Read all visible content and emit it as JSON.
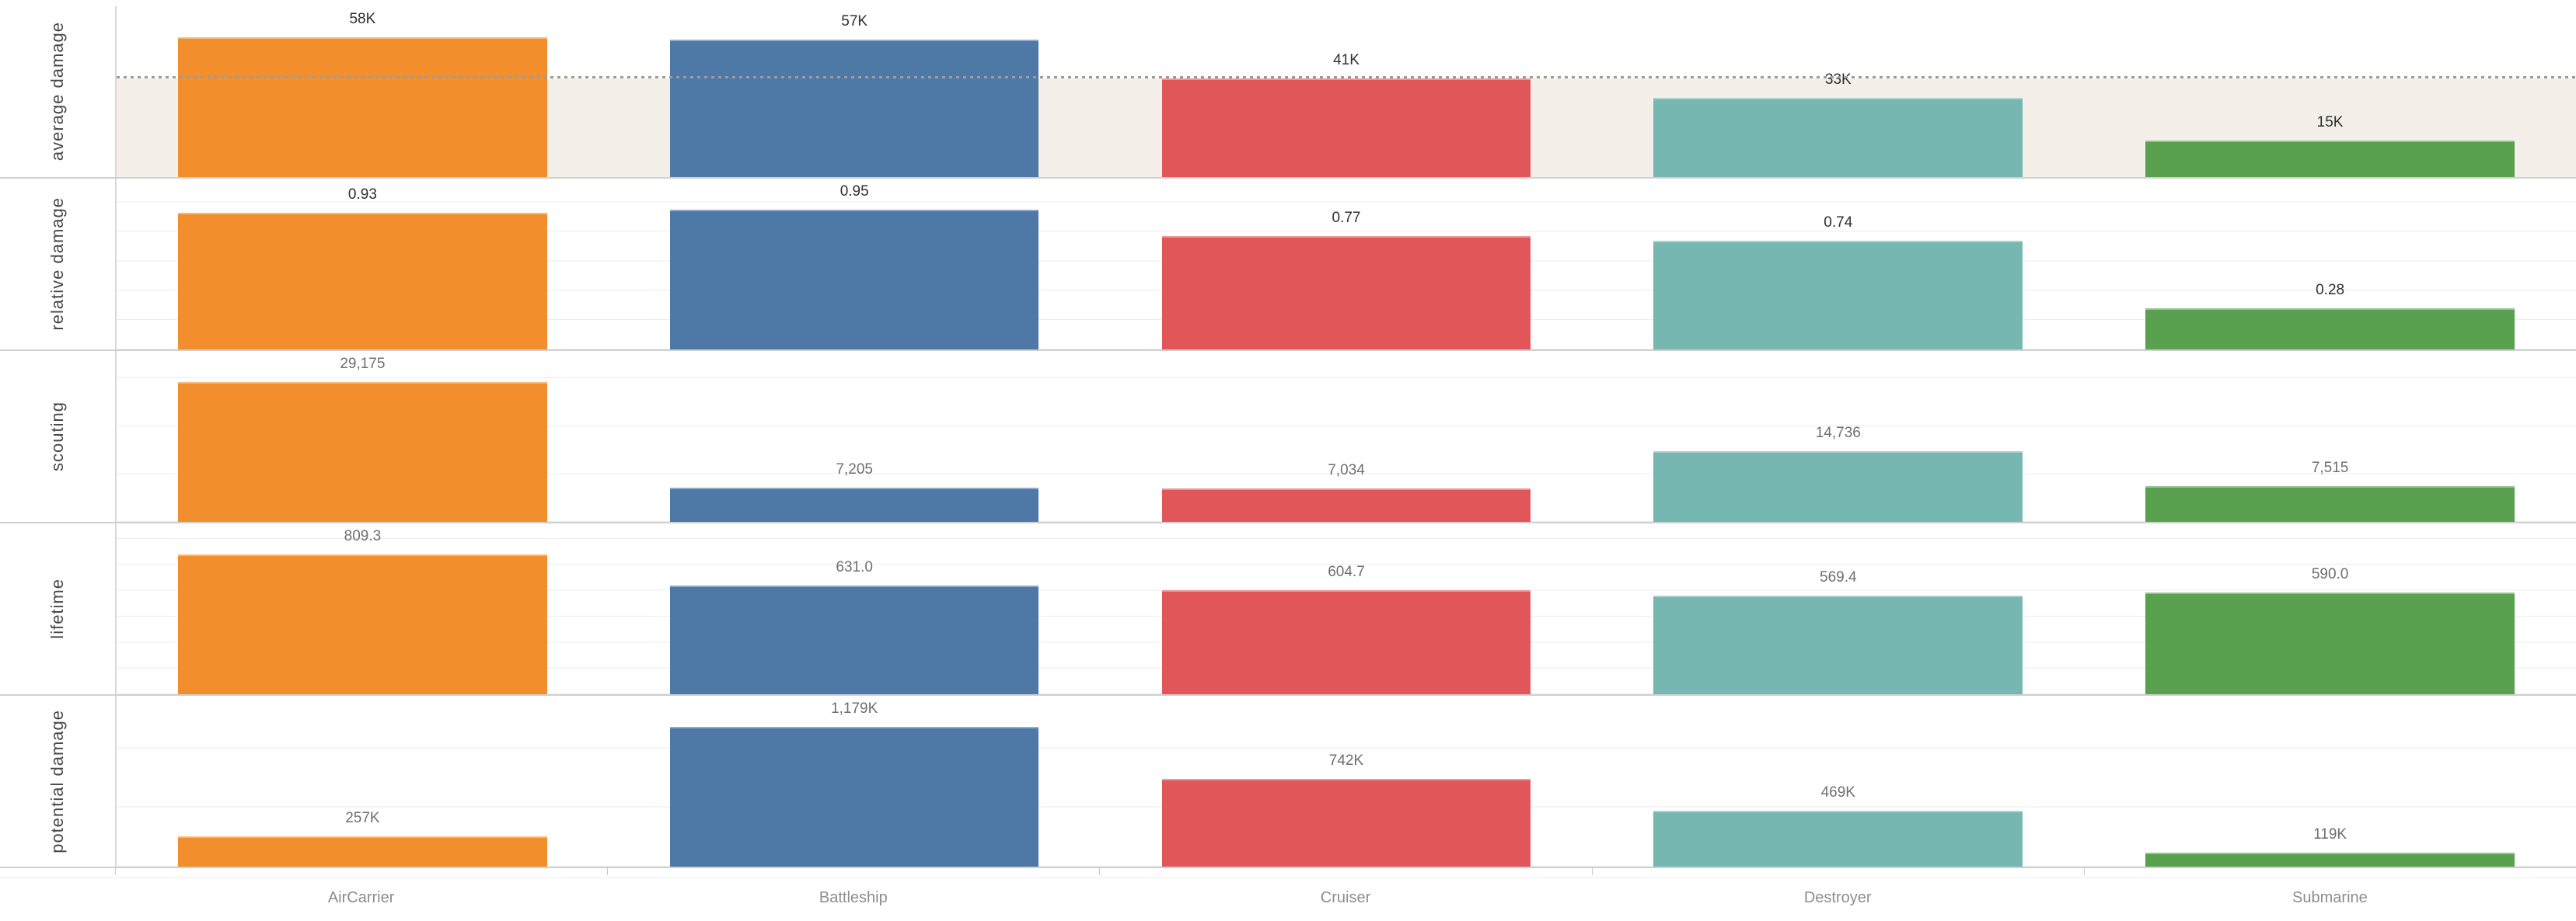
{
  "chart_data": {
    "type": "bar",
    "layout": "small-multiples-rows",
    "title": "",
    "legend": "none",
    "categories": [
      "AirCarrier",
      "Battleship",
      "Cruiser",
      "Destroyer",
      "Submarine"
    ],
    "category_colors": [
      "#f28e2b",
      "#4e79a7",
      "#e15759",
      "#76b7b2",
      "#59a14f"
    ],
    "axis_colors": {
      "separator": "#d0d0d0",
      "axis_line": "#d9d9d9",
      "gridline": "#ececec",
      "reference_dots": "#9c9c9c",
      "category_label": "#8d8d8d",
      "row_label": "#4a4747"
    },
    "rows": [
      {
        "metric": "average damage",
        "values": [
          58000,
          57000,
          41000,
          33000,
          15000
        ],
        "labels": [
          "58K",
          "57K",
          "41K",
          "33K",
          "15K"
        ],
        "label_color": "#2f2f2f",
        "ylim": [
          0,
          58000
        ],
        "grid_step": null,
        "reference_line": 41000,
        "reference_band": {
          "from": 0,
          "to": 41000,
          "fill": "#f4efe8"
        }
      },
      {
        "metric": "relative damage",
        "values": [
          0.93,
          0.95,
          0.77,
          0.74,
          0.28
        ],
        "labels": [
          "0.93",
          "0.95",
          "0.77",
          "0.74",
          "0.28"
        ],
        "label_color": "#2f2f2f",
        "ylim": [
          0,
          0.95
        ],
        "grid_step": 0.2,
        "reference_line": null,
        "reference_band": null
      },
      {
        "metric": "scouting",
        "values": [
          29175,
          7205,
          7034,
          14736,
          7515
        ],
        "labels": [
          "29,175",
          "7,205",
          "7,034",
          "14,736",
          "7,515"
        ],
        "label_color": "#6f6f6f",
        "ylim": [
          0,
          29175
        ],
        "grid_step": 10000,
        "reference_line": null,
        "reference_band": null
      },
      {
        "metric": "lifetime",
        "values": [
          809.3,
          631.0,
          604.7,
          569.4,
          590.0
        ],
        "labels": [
          "809.3",
          "631.0",
          "604.7",
          "569.4",
          "590.0"
        ],
        "label_color": "#6f6f6f",
        "ylim": [
          0,
          809.3
        ],
        "grid_step": 150,
        "reference_line": null,
        "reference_band": null
      },
      {
        "metric": "potential damage",
        "values": [
          257000,
          1179000,
          742000,
          469000,
          119000
        ],
        "labels": [
          "257K",
          "1,179K",
          "742K",
          "469K",
          "119K"
        ],
        "label_color": "#6f6f6f",
        "ylim": [
          0,
          1179000
        ],
        "grid_step": 500000,
        "reference_line": null,
        "reference_band": null
      }
    ]
  }
}
